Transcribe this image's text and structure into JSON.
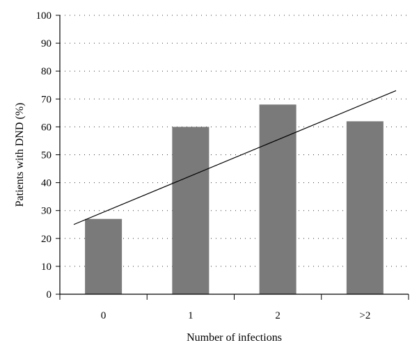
{
  "chart_data": {
    "type": "bar",
    "categories": [
      "0",
      "1",
      "2",
      ">2"
    ],
    "values": [
      27,
      60,
      68,
      62
    ],
    "xlabel": "Number of infections",
    "ylabel": "Patients with DND (%)",
    "ylim": [
      0,
      100
    ],
    "yticks": [
      0,
      10,
      20,
      30,
      40,
      50,
      60,
      70,
      80,
      90,
      100
    ],
    "grid": true,
    "legend": "none",
    "bar_color": "#7a7a7a",
    "trendline": {
      "type": "linear",
      "start": 25,
      "end": 73
    }
  }
}
